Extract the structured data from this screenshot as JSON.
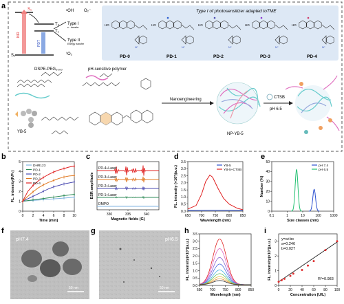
{
  "panel_letters": {
    "a": "a",
    "b": "b",
    "c": "c",
    "d": "d",
    "e": "e",
    "f": "f",
    "g": "g",
    "h": "h",
    "i": "i"
  },
  "a": {
    "state_labels": {
      "s1": "S₁",
      "t2": "T₂",
      "t1": "T₁",
      "s0": "S₀"
    },
    "nir_label": "NIR",
    "pdt_label": "PDT",
    "oh_label": "•OH",
    "o2m_label": "O₂⁻",
    "typeI_label": "Type I",
    "typeI_sub": "e⁻ transfer",
    "typeII_label": "Type II",
    "typeII_sub": "Energy transfer",
    "o2_singlet": "¹O₂",
    "box_title": "Type I of photosensitizer adapted toTME",
    "compounds": [
      "PD-0",
      "PD-1",
      "PD-2",
      "PD-3",
      "PD-4"
    ],
    "dspe_label": "DSPE-PEG₂₀₀₀",
    "polymer_label": "pH-sensitive polymer",
    "yb5_label": "YB-5",
    "nanoeng_label": "Nanoengineering",
    "np_label": "NP-YB-5",
    "ctsb_label": "CTSB",
    "ph_label": "pH 6.5"
  },
  "b": {
    "chart_data": {
      "type": "line",
      "xlabel": "Time (min)",
      "ylabel": "FL. intensity(F/F₀)",
      "x": [
        0,
        1,
        2,
        3,
        4,
        5,
        6,
        7,
        8,
        9,
        10
      ],
      "xlim": [
        0,
        10
      ],
      "ylim": [
        0,
        5
      ],
      "xticks": [
        "0",
        "2",
        "4",
        "6",
        "8",
        "10"
      ],
      "yticks": [
        "0",
        "1",
        "2",
        "3",
        "4",
        "5"
      ],
      "series": [
        {
          "name": "DHR123",
          "color": "#7fb3e0",
          "values": [
            1.0,
            1.04,
            1.08,
            1.12,
            1.16,
            1.2,
            1.24,
            1.28,
            1.32,
            1.36,
            1.4
          ]
        },
        {
          "name": "PD-1",
          "color": "#2e8b57",
          "values": [
            1.0,
            1.07,
            1.14,
            1.21,
            1.28,
            1.35,
            1.42,
            1.49,
            1.56,
            1.63,
            1.7
          ]
        },
        {
          "name": "PD-2",
          "color": "#4a4ab0",
          "values": [
            1.0,
            1.25,
            1.5,
            1.75,
            2.0,
            2.25,
            2.45,
            2.6,
            2.75,
            2.85,
            2.95
          ]
        },
        {
          "name": "PD-3",
          "color": "#e07820",
          "values": [
            1.0,
            1.5,
            1.95,
            2.35,
            2.65,
            2.9,
            3.1,
            3.3,
            3.45,
            3.55,
            3.6
          ]
        },
        {
          "name": "PD-4",
          "color": "#e02020",
          "values": [
            1.0,
            2.0,
            2.6,
            3.05,
            3.4,
            3.7,
            3.95,
            4.15,
            4.3,
            4.45,
            4.55
          ]
        }
      ]
    }
  },
  "c": {
    "chart_data": {
      "type": "line",
      "xlabel": "Magnetic fields (G)",
      "ylabel": "ESR amplitude",
      "xticks": [
        "330",
        "335",
        "340"
      ],
      "series": [
        {
          "name": "PD-4+Laser",
          "color": "#e02020"
        },
        {
          "name": "PD-3+Laser",
          "color": "#e07820"
        },
        {
          "name": "PD-2+Laser",
          "color": "#4a4ab0"
        },
        {
          "name": "PD-1+Laser",
          "color": "#2e8b57"
        },
        {
          "name": "DMPO",
          "color": "#7fb3e0"
        }
      ]
    }
  },
  "d": {
    "chart_data": {
      "type": "line",
      "xlabel": "Wavelength (nm)",
      "ylabel": "FL. intensity (×10³)(a.u.)",
      "xlim": [
        650,
        850
      ],
      "ylim": [
        0,
        3.5
      ],
      "xticks": [
        "650",
        "700",
        "750",
        "800",
        "850"
      ],
      "yticks": [
        "0.0",
        "0.5",
        "1.0",
        "1.5",
        "2.0",
        "2.5",
        "3.0",
        "3.5"
      ],
      "series": [
        {
          "name": "YB-5",
          "color": "#2a4fd0",
          "x": [
            650,
            700,
            725,
            750,
            800,
            850
          ],
          "values": [
            0.05,
            0.06,
            0.07,
            0.07,
            0.06,
            0.05
          ]
        },
        {
          "name": "YB-5+CTSB",
          "color": "#e02020",
          "x": [
            650,
            680,
            700,
            715,
            730,
            740,
            760,
            780,
            800,
            830,
            850
          ],
          "values": [
            0.15,
            0.4,
            1.2,
            2.1,
            2.55,
            2.4,
            1.6,
            0.9,
            0.5,
            0.2,
            0.1
          ]
        }
      ]
    }
  },
  "e": {
    "chart_data": {
      "type": "line",
      "xlabel": "Size classes (nm)",
      "ylabel": "Number (%)",
      "xscale": "log",
      "xlim": [
        0.1,
        1000
      ],
      "ylim": [
        0,
        50
      ],
      "xticks": [
        "0.1",
        "1",
        "10",
        "100",
        "1000"
      ],
      "yticks": [
        "0",
        "10",
        "20",
        "30",
        "40",
        "50"
      ],
      "series": [
        {
          "name": "pH 7.4",
          "color": "#2a4fd0",
          "peak_x": 55,
          "peak_y": 22
        },
        {
          "name": "pH 6.5",
          "color": "#20c070",
          "peak_x": 4,
          "peak_y": 42
        }
      ]
    }
  },
  "f": {
    "label": "pH7.4",
    "scale": "50 nm"
  },
  "g": {
    "label": "pH6.5",
    "scale": "50 nm"
  },
  "h": {
    "chart_data": {
      "type": "line",
      "xlabel": "Wavelength (nm)",
      "ylabel": "FL. intensity(×10³)(a.u.)",
      "xlim": [
        650,
        850
      ],
      "ylim": [
        0,
        3.5
      ],
      "xticks": [
        "650",
        "700",
        "750",
        "800",
        "850"
      ],
      "yticks": [
        "0.0",
        "0.5",
        "1.0",
        "1.5",
        "2.0",
        "2.5",
        "3.0",
        "3.5"
      ],
      "series": [
        {
          "peak": 3.1,
          "color": "#e02020"
        },
        {
          "peak": 2.45,
          "color": "#e060c0"
        },
        {
          "peak": 1.85,
          "color": "#8a60d0"
        },
        {
          "peak": 1.4,
          "color": "#4a6ae0"
        },
        {
          "peak": 1.0,
          "color": "#40b0e0"
        },
        {
          "peak": 0.75,
          "color": "#60c060"
        },
        {
          "peak": 0.55,
          "color": "#e0c040"
        },
        {
          "peak": 0.4,
          "color": "#e09040"
        },
        {
          "peak": 0.28,
          "color": "#2a2a2a"
        }
      ]
    }
  },
  "i": {
    "chart_data": {
      "type": "scatter",
      "xlabel": "Concentration (U/L)",
      "ylabel": "FL. intensity(×10³)(a.u.)",
      "xlim": [
        0,
        100
      ],
      "ylim": [
        0,
        3.5
      ],
      "xticks": [
        "0",
        "20",
        "40",
        "60",
        "80",
        "100"
      ],
      "yticks": [
        "0",
        "1",
        "2",
        "3"
      ],
      "x": [
        0,
        5,
        10,
        20,
        25,
        40,
        50,
        60,
        80,
        100
      ],
      "values": [
        0.25,
        0.35,
        0.45,
        0.65,
        0.8,
        1.05,
        1.35,
        1.65,
        2.4,
        3.0
      ],
      "fit": {
        "a": 0.246,
        "b": 0.027
      },
      "eq_text": "y=a+bx",
      "a_text": "a=0.246",
      "b_text": "b=0.027",
      "r2_text": "R²=0.983"
    }
  }
}
